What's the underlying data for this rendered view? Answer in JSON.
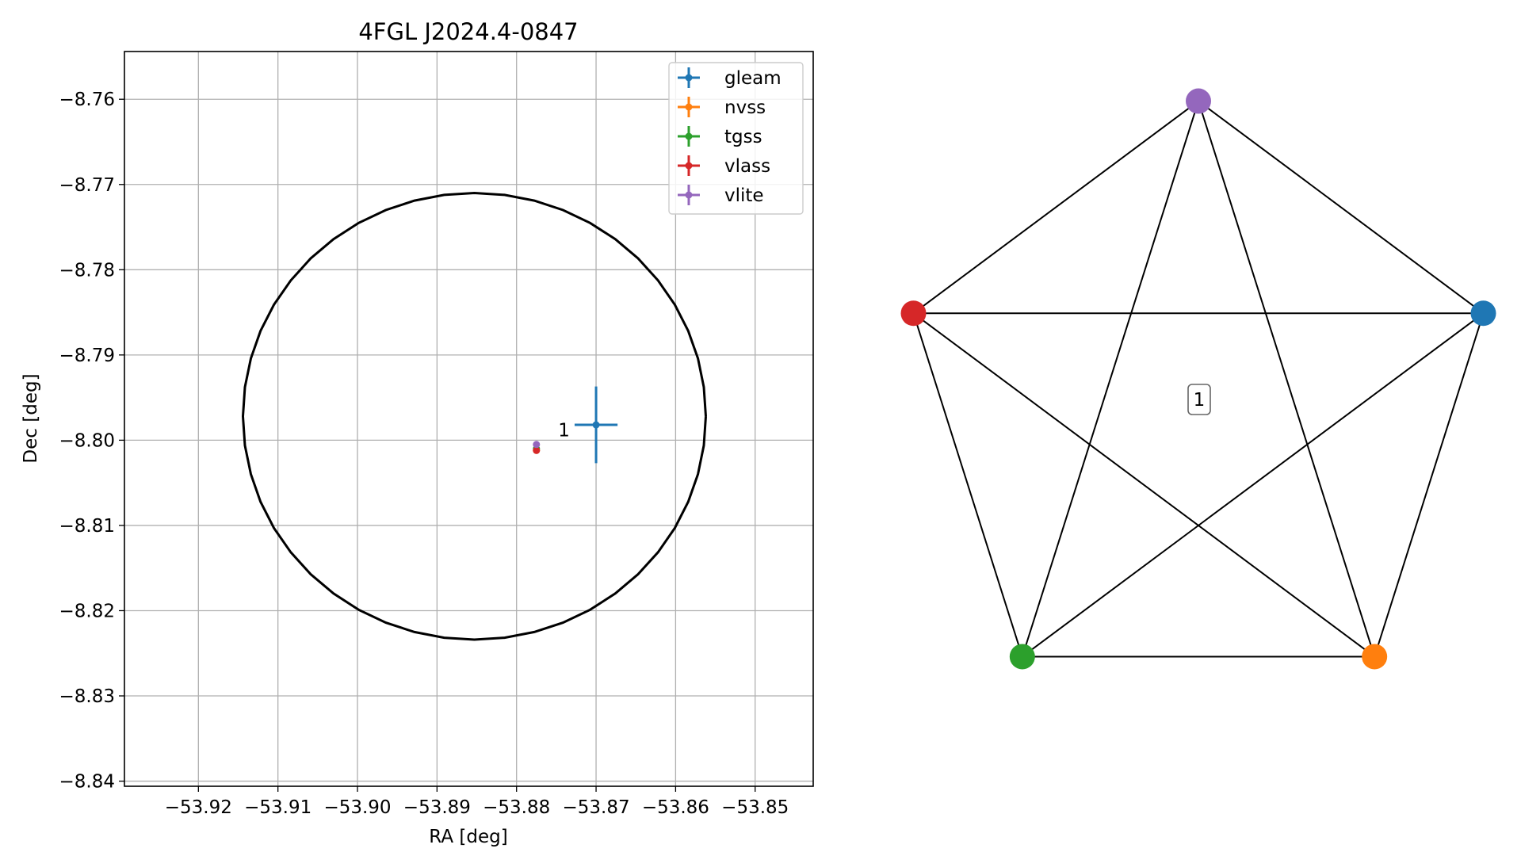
{
  "chart_data": [
    {
      "type": "scatter",
      "title": "4FGL J2024.4-0847",
      "xlabel": "RA [deg]",
      "ylabel": "Dec [deg]",
      "xlim": [
        -53.9293,
        -53.8427
      ],
      "ylim": [
        -8.8406,
        -8.7544
      ],
      "grid": true,
      "legend_position": "top-right",
      "xticks": [
        -53.92,
        -53.91,
        -53.9,
        -53.89,
        -53.88,
        -53.87,
        -53.86,
        -53.85
      ],
      "xtick_labels": [
        "−53.92",
        "−53.91",
        "−53.90",
        "−53.89",
        "−53.88",
        "−53.87",
        "−53.86",
        "−53.85"
      ],
      "yticks": [
        -8.76,
        -8.77,
        -8.78,
        -8.79,
        -8.8,
        -8.81,
        -8.82,
        -8.83,
        -8.84
      ],
      "ytick_labels": [
        "−8.76",
        "−8.77",
        "−8.78",
        "−8.79",
        "−8.80",
        "−8.81",
        "−8.82",
        "−8.83",
        "−8.84"
      ],
      "region": {
        "shape": "ellipse",
        "center": [
          -53.8853,
          -8.7972
        ],
        "semi_axis_ra": 0.0291,
        "semi_axis_dec": 0.0262
      },
      "annotation": {
        "text": "1",
        "x": -53.8733,
        "y": -8.7988
      },
      "series": [
        {
          "name": "gleam",
          "color": "#1f77b4",
          "x": -53.87,
          "y": -8.7982,
          "xerr": 0.0027,
          "yerr": 0.0045
        },
        {
          "name": "nvss",
          "color": "#ff7f0e",
          "x": -53.8775,
          "y": -8.8012,
          "xerr": 0.0002,
          "yerr": 0.0002
        },
        {
          "name": "tgss",
          "color": "#2ca02c",
          "x": -53.8775,
          "y": -8.801,
          "xerr": 0.0002,
          "yerr": 0.0002
        },
        {
          "name": "vlass",
          "color": "#d62728",
          "x": -53.8775,
          "y": -8.8012,
          "xerr": 0.0002,
          "yerr": 0.0002
        },
        {
          "name": "vlite",
          "color": "#9467bd",
          "x": -53.8775,
          "y": -8.8005,
          "xerr": 0.0002,
          "yerr": 0.0002
        }
      ]
    },
    {
      "type": "network",
      "center_label": "1",
      "nodes": [
        {
          "color": "#9467bd"
        },
        {
          "color": "#1f77b4"
        },
        {
          "color": "#ff7f0e"
        },
        {
          "color": "#2ca02c"
        },
        {
          "color": "#d62728"
        }
      ],
      "edges": [
        [
          0,
          1
        ],
        [
          0,
          2
        ],
        [
          0,
          3
        ],
        [
          0,
          4
        ],
        [
          1,
          2
        ],
        [
          1,
          3
        ],
        [
          1,
          4
        ],
        [
          2,
          3
        ],
        [
          2,
          4
        ],
        [
          3,
          4
        ]
      ]
    }
  ]
}
